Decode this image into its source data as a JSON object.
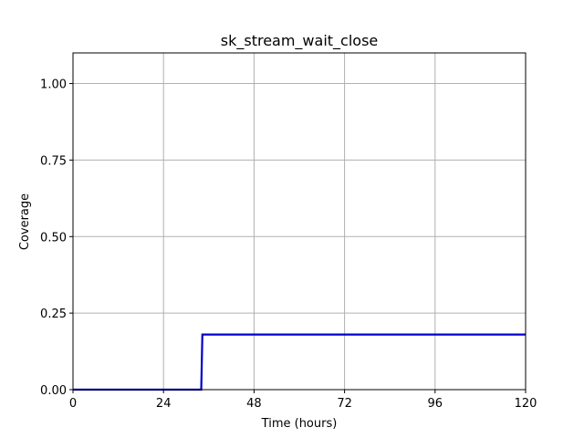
{
  "chart_data": {
    "type": "line",
    "title": "sk_stream_wait_close",
    "xlabel": "Time (hours)",
    "ylabel": "Coverage",
    "xlim": [
      0,
      120
    ],
    "ylim": [
      0,
      1.1
    ],
    "xticks": [
      0,
      24,
      48,
      72,
      96,
      120
    ],
    "xtick_labels": [
      "0",
      "24",
      "48",
      "72",
      "96",
      "120"
    ],
    "yticks": [
      0.0,
      0.25,
      0.5,
      0.75,
      1.0
    ],
    "ytick_labels": [
      "0.00",
      "0.25",
      "0.50",
      "0.75",
      "1.00"
    ],
    "grid": true,
    "legend": "none",
    "series": [
      {
        "color": "#0000cc",
        "step": true,
        "points": [
          [
            0,
            0.0
          ],
          [
            34,
            0.0
          ],
          [
            34.3,
            0.18
          ],
          [
            120,
            0.18
          ]
        ]
      }
    ]
  }
}
